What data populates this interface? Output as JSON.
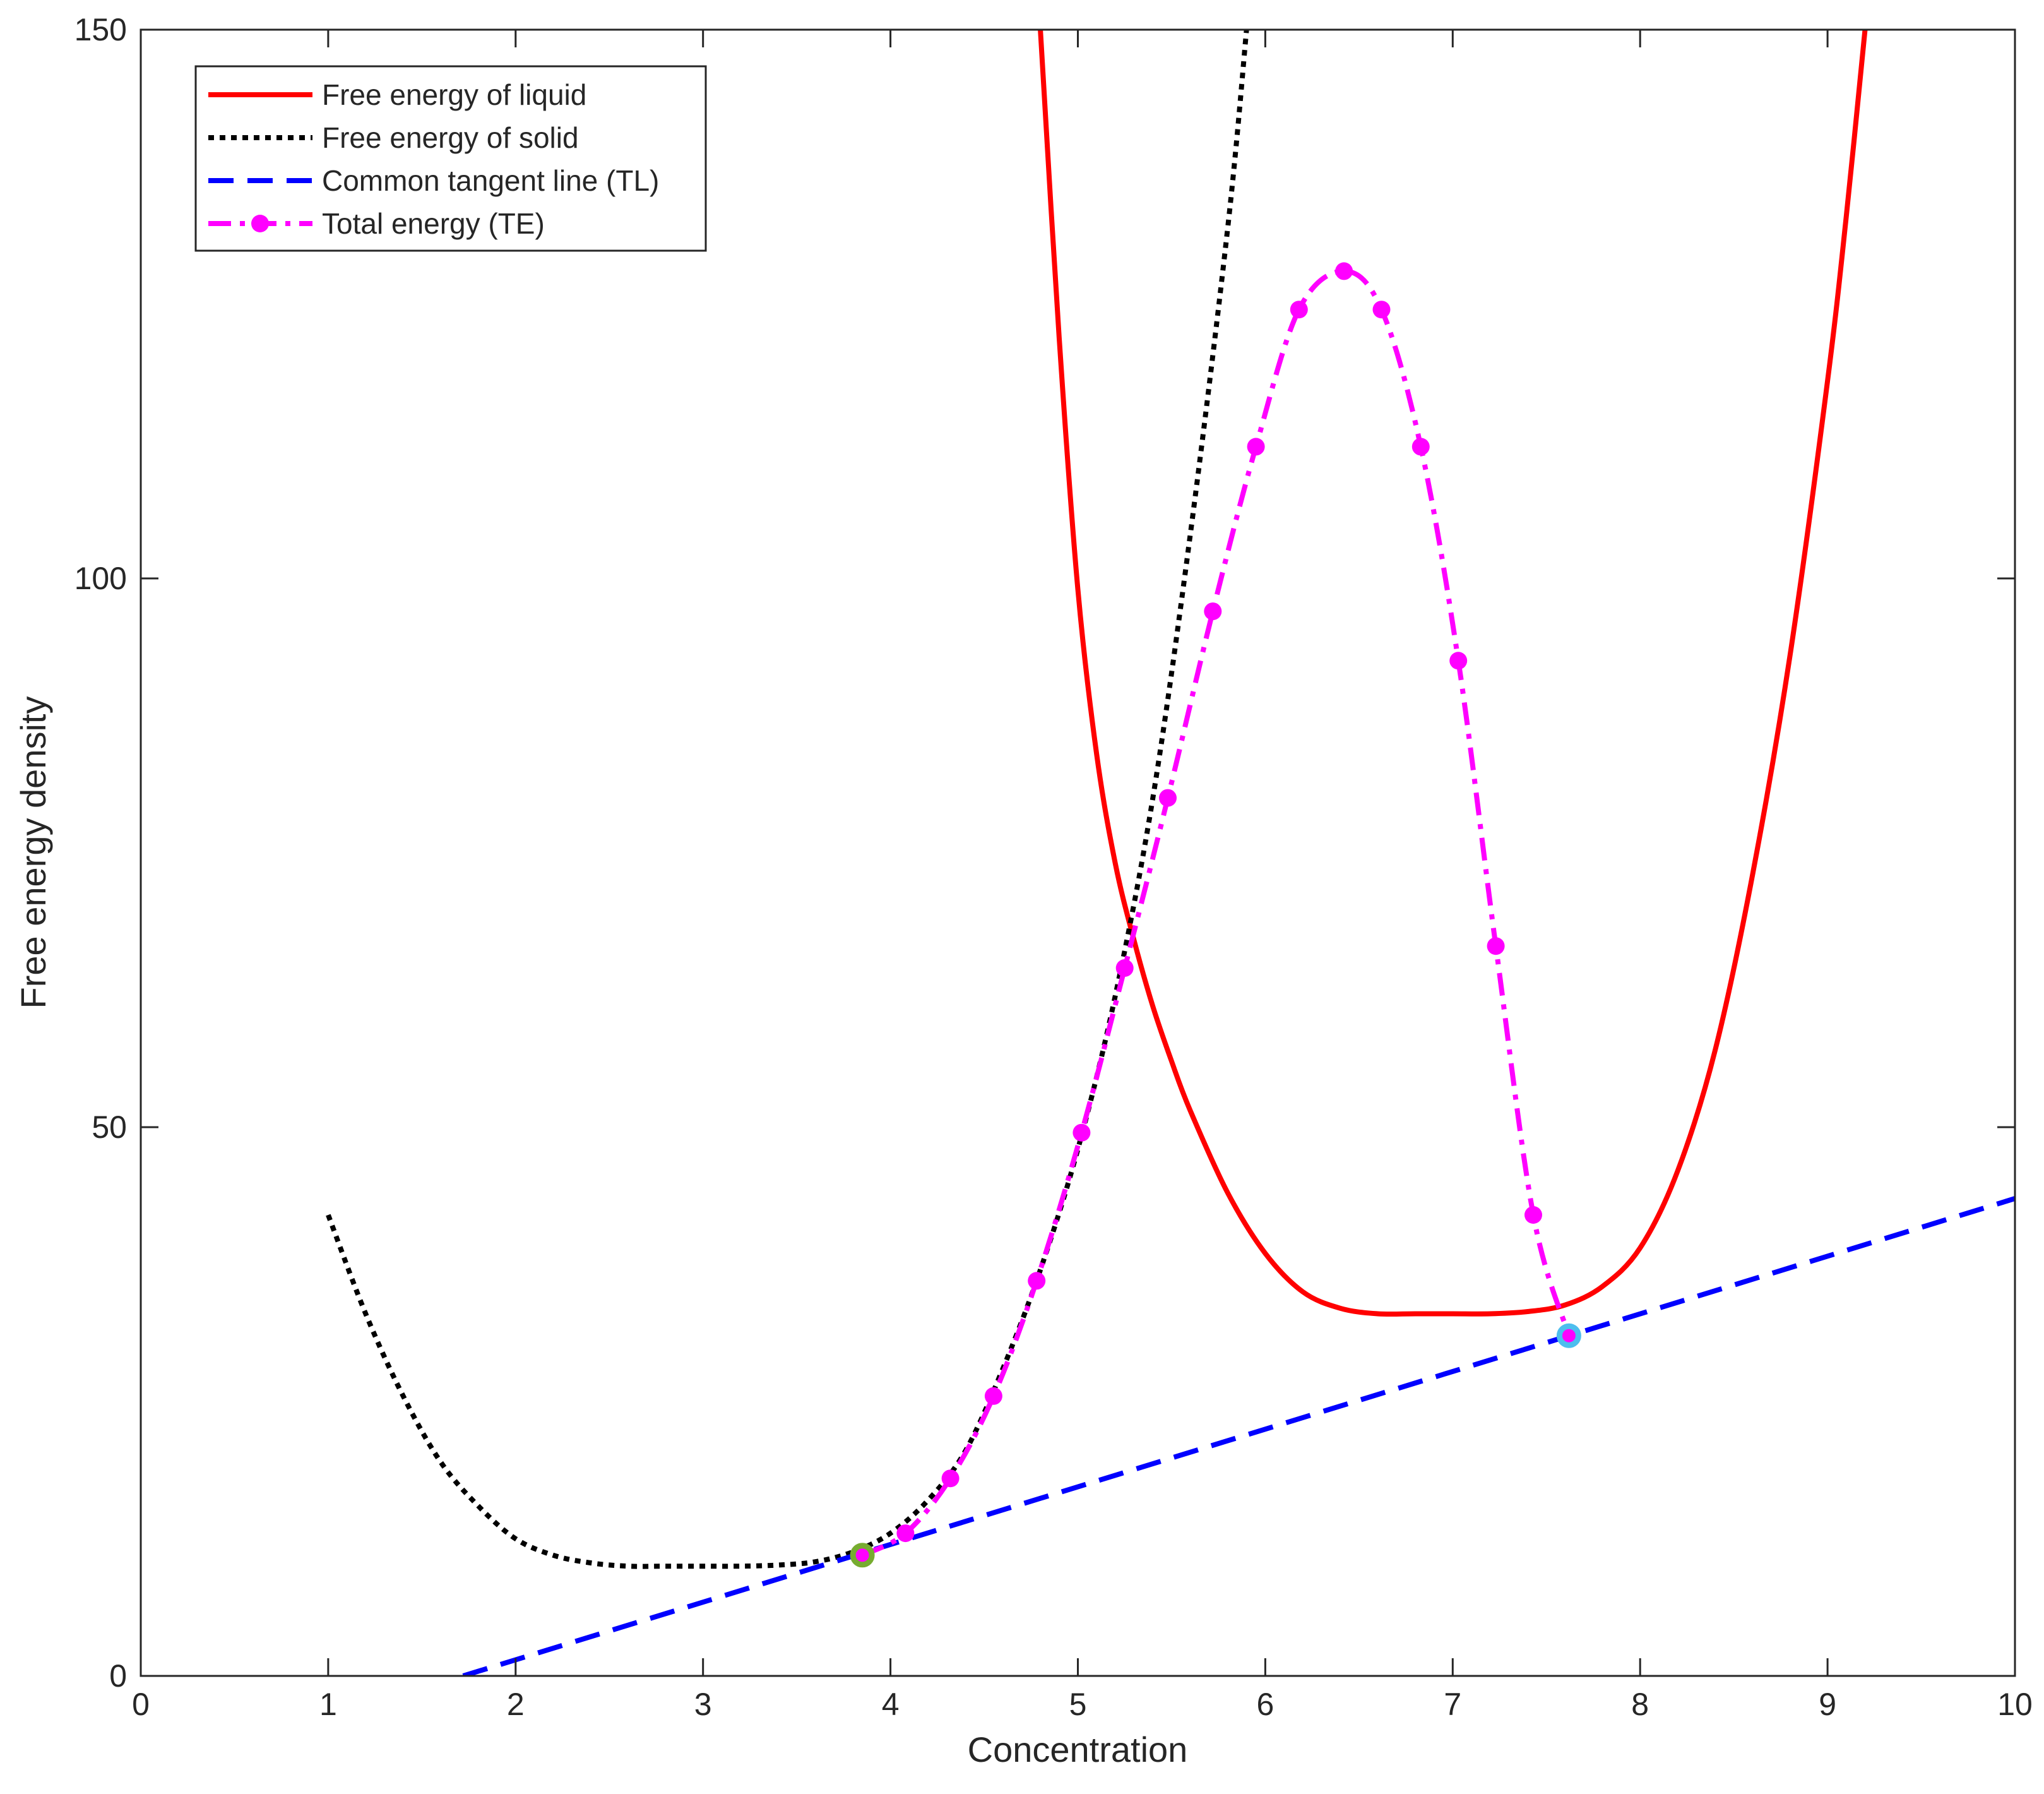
{
  "chart_data": {
    "type": "line",
    "xlabel": "Concentration",
    "ylabel": "Free energy density",
    "xlim": [
      0,
      10
    ],
    "ylim": [
      0,
      150
    ],
    "xticks": [
      "0",
      "1",
      "2",
      "3",
      "4",
      "5",
      "6",
      "7",
      "8",
      "9",
      "10"
    ],
    "yticks": [
      "0",
      "50",
      "100",
      "150"
    ],
    "legend_position": "top-left",
    "grid": false,
    "series": [
      {
        "name": "Free energy of liquid",
        "style": "solid",
        "color": "#ff0000",
        "x": [
          4.8,
          4.9,
          5.0,
          5.1,
          5.2,
          5.3,
          5.4,
          5.5,
          5.6,
          5.8,
          6.0,
          6.2,
          6.4,
          6.6,
          6.8,
          7.0,
          7.2,
          7.4,
          7.6,
          7.8,
          8.0,
          8.2,
          8.4,
          8.6,
          8.8,
          9.0,
          9.1,
          9.2
        ],
        "y": [
          150,
          122,
          99,
          84,
          74,
          67,
          61,
          56,
          51.5,
          44,
          38.5,
          35,
          33.5,
          33,
          33,
          33,
          33,
          33.2,
          33.8,
          35.5,
          39,
          46,
          57,
          73,
          93,
          118,
          133,
          150
        ]
      },
      {
        "name": "Free energy of solid",
        "style": "dotted",
        "color": "#000000",
        "x": [
          1.0,
          1.2,
          1.4,
          1.6,
          1.8,
          2.0,
          2.2,
          2.4,
          2.6,
          2.8,
          3.0,
          3.2,
          3.4,
          3.6,
          3.8,
          4.0,
          4.2,
          4.4,
          4.6,
          4.8,
          5.0,
          5.2,
          5.4,
          5.6,
          5.8,
          5.9
        ],
        "y": [
          42,
          33,
          25.5,
          19.5,
          15.5,
          12.5,
          11,
          10.3,
          10,
          10,
          10,
          10,
          10.1,
          10.4,
          11.3,
          13,
          16,
          20.5,
          28,
          37,
          48,
          62,
          80,
          104,
          132,
          150
        ]
      },
      {
        "name": "Common tangent line (TL)",
        "style": "dashed",
        "color": "#0000ff",
        "x": [
          1.72,
          10.0
        ],
        "y": [
          0,
          43.5
        ]
      },
      {
        "name": "Total energy (TE)",
        "style": "dashdot-markers",
        "color": "#ff00ff",
        "x": [
          3.85,
          4.08,
          4.32,
          4.55,
          4.78,
          5.02,
          5.25,
          5.48,
          5.72,
          5.95,
          6.18,
          6.42,
          6.62,
          6.83,
          7.03,
          7.23,
          7.43,
          7.62
        ],
        "y": [
          11,
          13,
          18,
          25.5,
          36,
          49.5,
          64.5,
          80,
          97,
          112,
          124.5,
          128,
          124.5,
          112,
          92.5,
          66.5,
          42,
          31
        ]
      }
    ],
    "tangent_points": [
      {
        "x": 3.85,
        "y": 11,
        "color": "#77ac30"
      },
      {
        "x": 7.62,
        "y": 31,
        "color": "#4dbeee"
      }
    ]
  }
}
